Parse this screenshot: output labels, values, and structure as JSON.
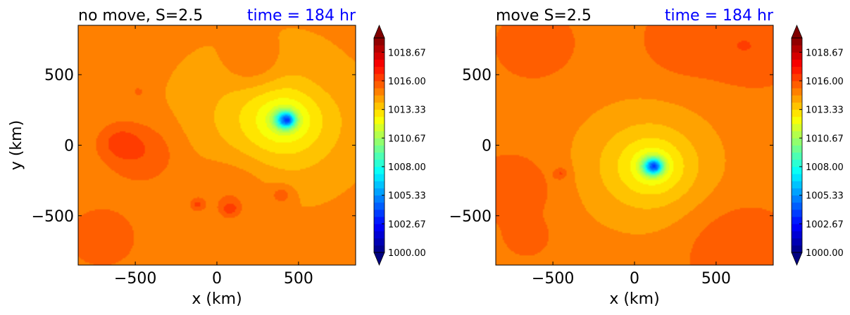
{
  "chart_data": [
    {
      "type": "contourf",
      "title": "no move, S=2.5",
      "time_label": "time = 184 hr",
      "time_color": "#0000ff",
      "xlabel": "x (km)",
      "ylabel": "y (km)",
      "xlim": [
        -850,
        850
      ],
      "ylim": [
        -850,
        850
      ],
      "xticks": [
        -500,
        0,
        500
      ],
      "yticks": [
        -500,
        0,
        500
      ],
      "xtick_labels": [
        "−500",
        "0",
        "500"
      ],
      "ytick_labels": [
        "−500",
        "0",
        "500"
      ],
      "field": {
        "background_level": 1015.0,
        "center": [
          430,
          180
        ],
        "min_value": 1000.0,
        "core_radius_km": 55,
        "decay_radius_km": 260,
        "asymmetry": 0.15,
        "features": [
          {
            "x": -450,
            "y": -50,
            "r": 220,
            "value": 1016.1
          },
          {
            "x": -600,
            "y": 20,
            "r": 120,
            "value": 1016.0
          },
          {
            "x": 100,
            "y": -300,
            "r": 260,
            "value": 1015.8
          },
          {
            "x": -700,
            "y": -650,
            "r": 200,
            "value": 1016.0
          },
          {
            "x": -120,
            "y": -420,
            "r": 40,
            "value": 1016.2
          },
          {
            "x": 80,
            "y": -450,
            "r": 50,
            "value": 1016.3
          },
          {
            "x": 400,
            "y": -350,
            "r": 70,
            "value": 1016.0
          },
          {
            "x": 230,
            "y": 560,
            "r": 180,
            "value": 1016.0
          },
          {
            "x": -480,
            "y": 380,
            "r": 40,
            "value": 1015.7
          },
          {
            "x": 620,
            "y": 450,
            "r": 200,
            "value": 1015.2
          }
        ]
      },
      "colorbar": {
        "vmin": 1000.0,
        "vmax": 1020.0,
        "levels": 30,
        "extend": "both",
        "tick_values": [
          1000.0,
          1002.67,
          1005.33,
          1008.0,
          1010.67,
          1013.33,
          1016.0,
          1018.67
        ],
        "tick_labels": [
          "1000.00",
          "1002.67",
          "1005.33",
          "1008.00",
          "1010.67",
          "1013.33",
          "1016.00",
          "1018.67"
        ],
        "colormap": "jet"
      }
    },
    {
      "type": "contourf",
      "title": "move S=2.5",
      "time_label": "time = 184 hr",
      "time_color": "#0000ff",
      "xlabel": "x (km)",
      "ylabel": "",
      "xlim": [
        -850,
        850
      ],
      "ylim": [
        -850,
        850
      ],
      "xticks": [
        -500,
        0,
        500
      ],
      "yticks": [
        -500,
        0,
        500
      ],
      "xtick_labels": [
        "−500",
        "0",
        "500"
      ],
      "ytick_labels": [
        "−500",
        "0",
        "500"
      ],
      "field": {
        "background_level": 1015.2,
        "center": [
          120,
          -150
        ],
        "min_value": 1000.0,
        "core_radius_km": 55,
        "decay_radius_km": 230,
        "asymmetry": 0.1,
        "features": [
          {
            "x": -700,
            "y": -300,
            "r": 250,
            "value": 1015.9
          },
          {
            "x": 600,
            "y": -700,
            "r": 300,
            "value": 1016.0
          },
          {
            "x": 700,
            "y": 700,
            "r": 260,
            "value": 1016.0
          },
          {
            "x": -600,
            "y": 700,
            "r": 200,
            "value": 1016.0
          },
          {
            "x": 300,
            "y": 700,
            "r": 250,
            "value": 1015.8
          },
          {
            "x": -450,
            "y": -200,
            "r": 40,
            "value": 1016.3
          },
          {
            "x": -650,
            "y": -650,
            "r": 120,
            "value": 1015.9
          }
        ]
      },
      "colorbar": {
        "vmin": 1000.0,
        "vmax": 1020.0,
        "levels": 30,
        "extend": "both",
        "tick_values": [
          1000.0,
          1002.67,
          1005.33,
          1008.0,
          1010.67,
          1013.33,
          1016.0,
          1018.67
        ],
        "tick_labels": [
          "1000.00",
          "1002.67",
          "1005.33",
          "1008.00",
          "1010.67",
          "1013.33",
          "1016.00",
          "1018.67"
        ],
        "colormap": "jet"
      }
    }
  ]
}
